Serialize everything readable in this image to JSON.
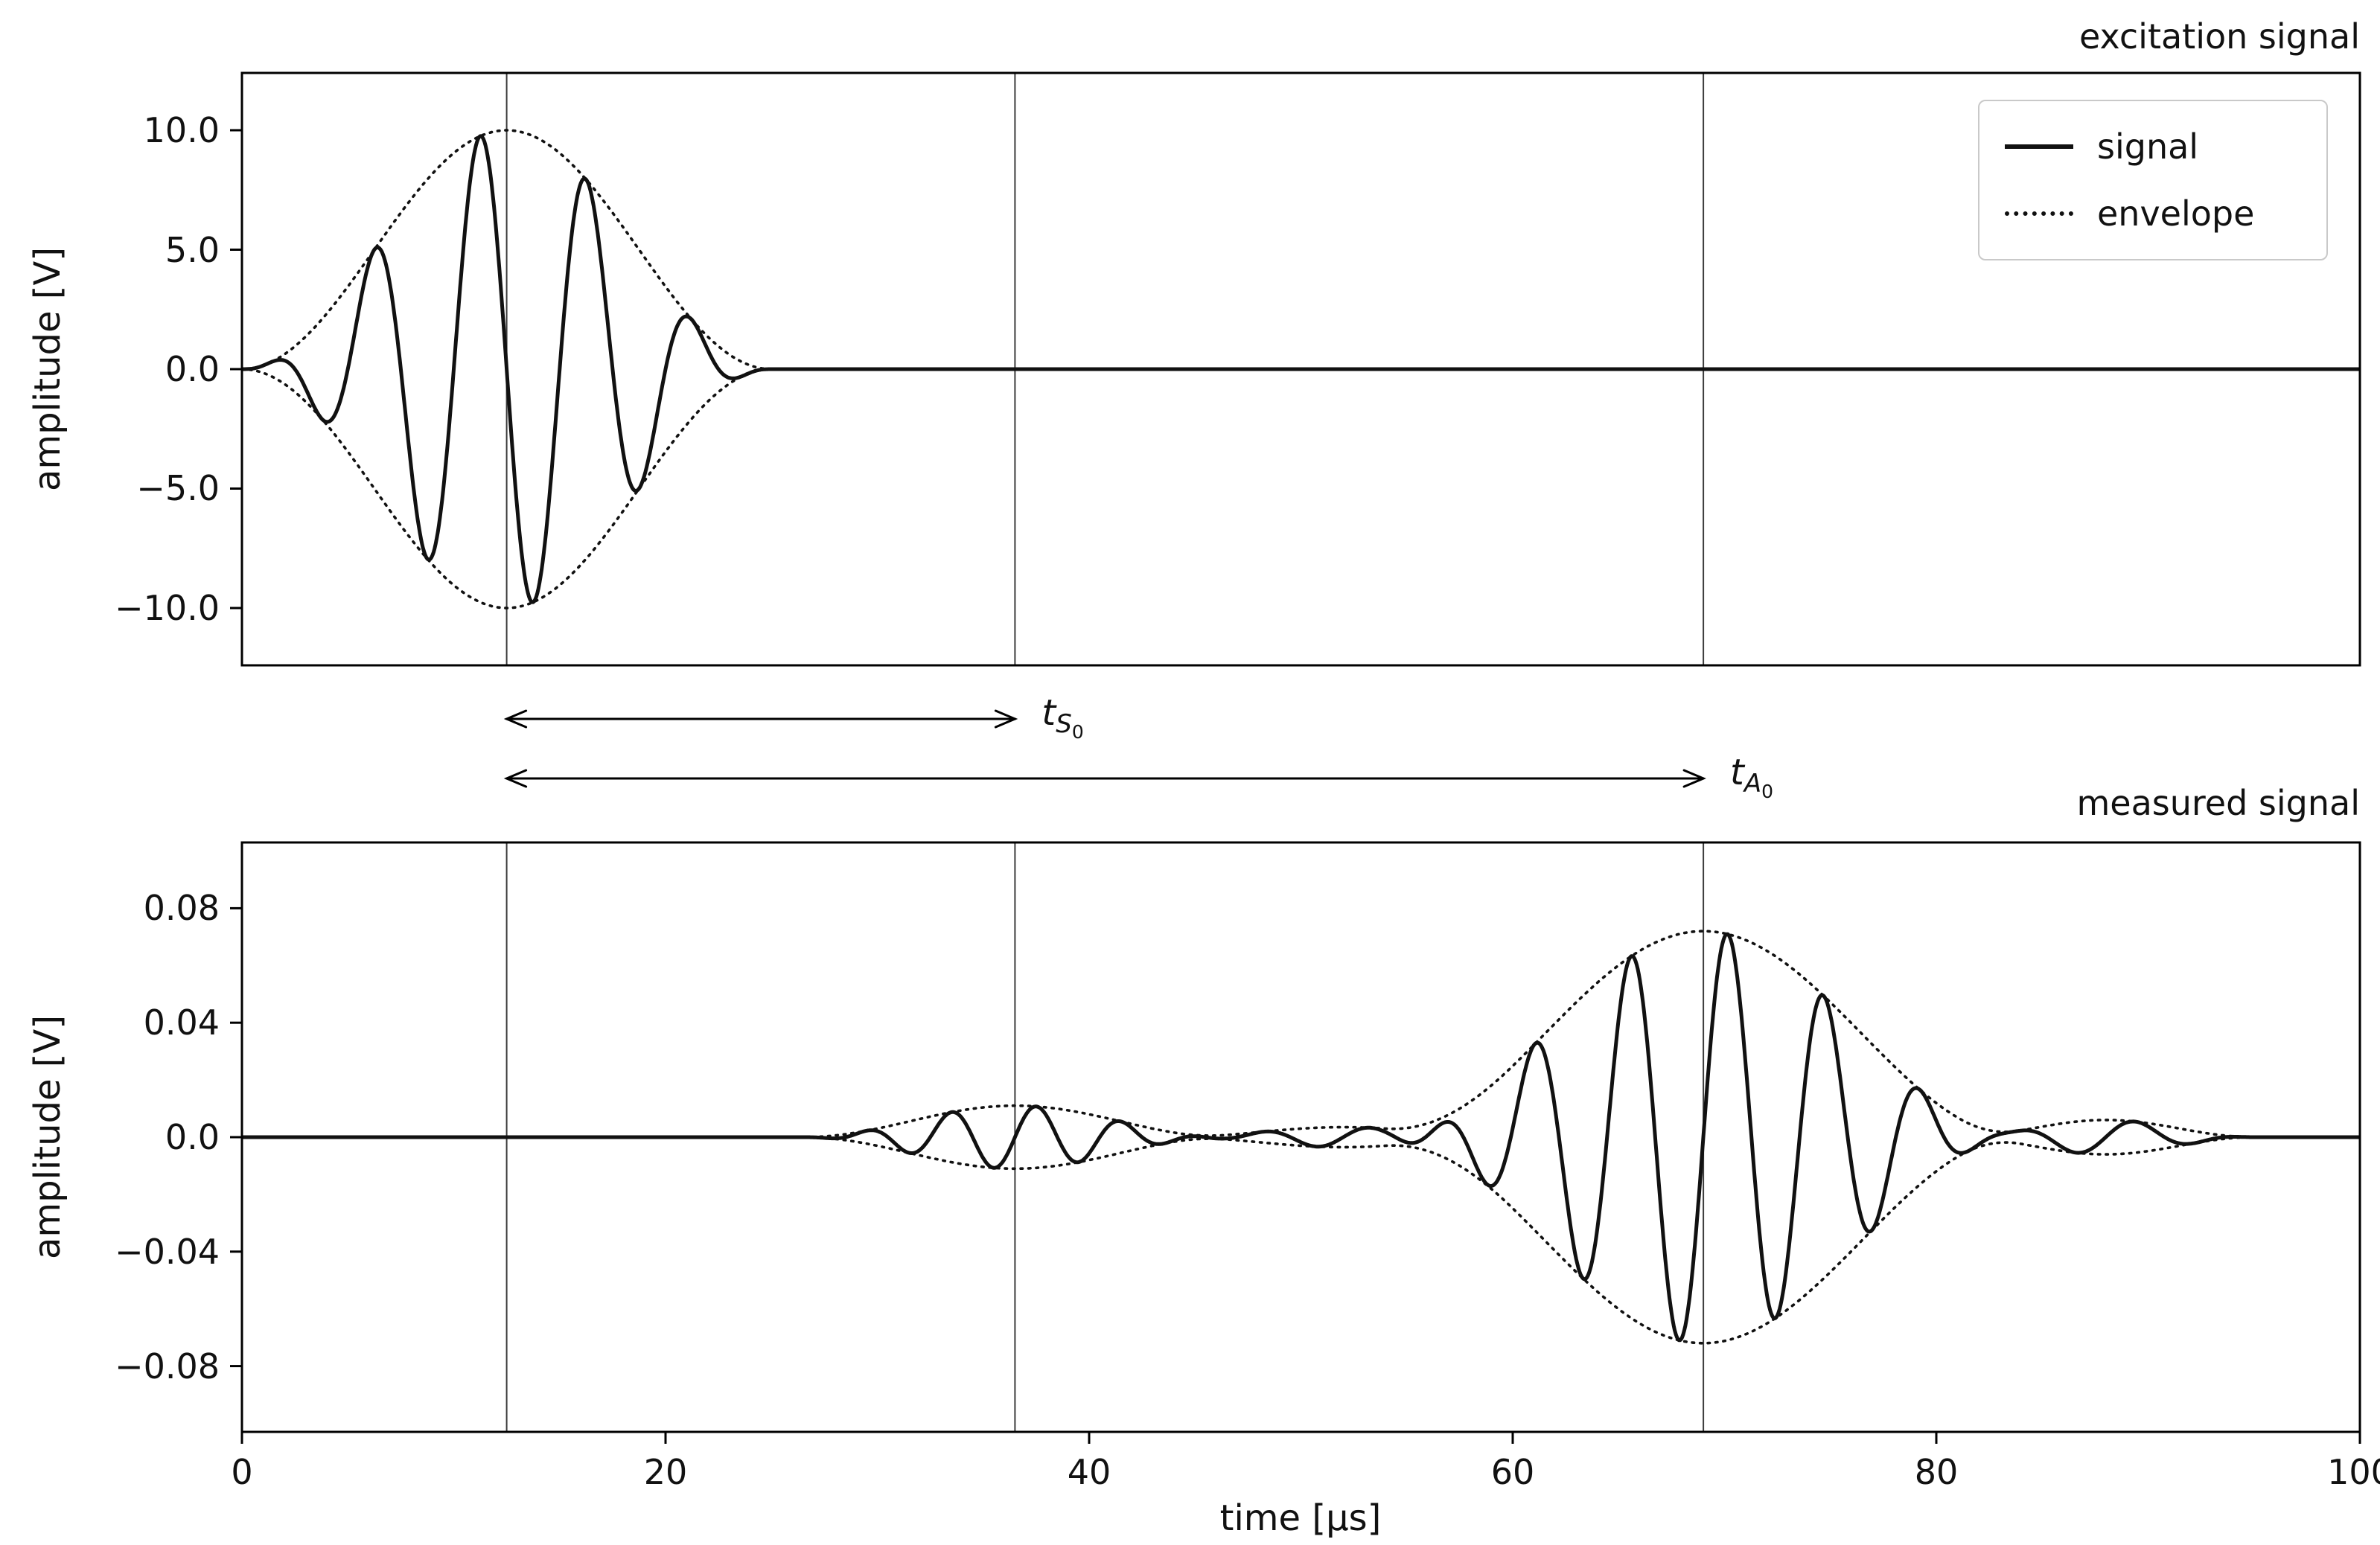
{
  "page": {
    "background": "#ffffff",
    "text_color": "#111111",
    "line_color": "#111111",
    "grid_color": "#3c3c3c"
  },
  "chart_data": [
    {
      "type": "line",
      "title": "excitation signal",
      "ylabel": "amplitude [V]",
      "xlim": [
        0,
        100
      ],
      "ylim": [
        -12.4,
        12.4
      ],
      "yticks": [
        10.0,
        5.0,
        0.0,
        -5.0,
        -10.0
      ],
      "ytick_labels": [
        "10.0",
        "5.0",
        "0.0",
        "−5.0",
        "−10.0"
      ],
      "vlines_us": [
        12.5,
        36.5,
        69.0
      ],
      "legend": {
        "position": "upper right",
        "entries": [
          "signal",
          "envelope"
        ]
      },
      "series": [
        {
          "name": "signal",
          "style": "solid"
        },
        {
          "name": "envelope",
          "style": "dotted"
        }
      ],
      "signal_model": {
        "description": "5-cycle Hann-windowed sine toneburst, 200 kHz, 10 V peak, 0-25 us",
        "packets": [
          {
            "center_us": 12.5,
            "duration_us": 25,
            "amplitude_V": 10.0,
            "freq_MHz": 0.2,
            "phase_pi": 1
          }
        ],
        "peak_amplitudes_V": [
          0.24,
          -1.46,
          5.0,
          -7.9,
          9.8,
          -9.9,
          7.9,
          -5.0,
          2.1,
          -0.24
        ]
      }
    },
    {
      "type": "line",
      "title": "measured signal",
      "xlabel": "time [µs]",
      "ylabel": "amplitude [V]",
      "xlim": [
        0,
        100
      ],
      "ylim": [
        -0.103,
        0.103
      ],
      "yticks": [
        0.08,
        0.04,
        0.0,
        -0.04,
        -0.08
      ],
      "ytick_labels": [
        "0.08",
        "0.04",
        "0.0",
        "−0.04",
        "−0.08"
      ],
      "xticks": [
        0,
        20,
        40,
        60,
        80,
        100
      ],
      "xtick_labels": [
        "0",
        "20",
        "40",
        "60",
        "80",
        "100"
      ],
      "vlines_us": [
        12.5,
        36.5,
        69.0
      ],
      "series": [
        {
          "name": "signal",
          "style": "solid"
        },
        {
          "name": "envelope",
          "style": "dotted"
        }
      ],
      "signal_model": {
        "description": "two Lamb-wave packets: faster low-amplitude S0 arriving at 36.5 us, slower high-amplitude A0 arriving at 69 us",
        "packets": [
          {
            "mode": "S0",
            "center_us": 36.5,
            "duration_us": 20,
            "amplitude_V": 0.011,
            "freq_MHz": 0.25,
            "phase_pi": 0
          },
          {
            "mode": "A0",
            "center_us": 69.0,
            "duration_us": 30,
            "amplitude_V": 0.072,
            "freq_MHz": 0.22,
            "phase_pi": 0
          },
          {
            "mode": "ripple",
            "center_us": 52.0,
            "duration_us": 16,
            "amplitude_V": 0.0035,
            "freq_MHz": 0.2,
            "phase_pi": 0
          },
          {
            "mode": "ripple",
            "center_us": 88.0,
            "duration_us": 14,
            "amplitude_V": 0.006,
            "freq_MHz": 0.18,
            "phase_pi": 0
          }
        ],
        "arrival_times_us": {
          "S0": 36.5,
          "A0": 69.0
        },
        "peak_amplitude_V": {
          "S0": 0.011,
          "A0": 0.072
        }
      }
    }
  ],
  "annotations": {
    "arrows": [
      {
        "name": "time-of-flight-S0",
        "from_us": 12.5,
        "to_us": 36.5,
        "label_main": "t",
        "label_sub": "S",
        "label_subsub": "0"
      },
      {
        "name": "time-of-flight-A0",
        "from_us": 12.5,
        "to_us": 69.0,
        "label_main": "t",
        "label_sub": "A",
        "label_subsub": "0"
      }
    ]
  }
}
